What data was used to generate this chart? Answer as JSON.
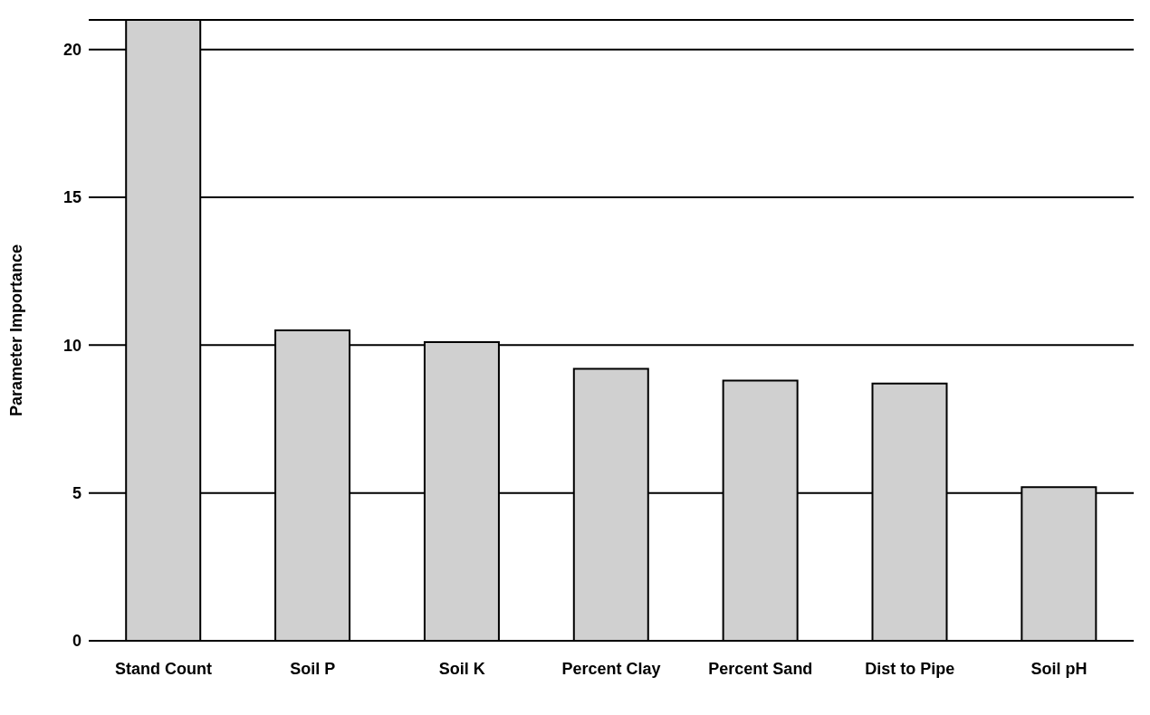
{
  "chart_data": {
    "type": "bar",
    "ylabel": "Parameter Importance",
    "categories": [
      "Stand Count",
      "Soil P",
      "Soil K",
      "Percent Clay",
      "Percent Sand",
      "Dist to Pipe",
      "Soil pH"
    ],
    "values": [
      21.0,
      10.5,
      10.1,
      9.2,
      8.8,
      8.7,
      5.2
    ],
    "color": "#d0d0d0",
    "ylim": [
      0,
      21
    ],
    "yticks": [
      0,
      5,
      10,
      15,
      20
    ],
    "grid": "y"
  }
}
